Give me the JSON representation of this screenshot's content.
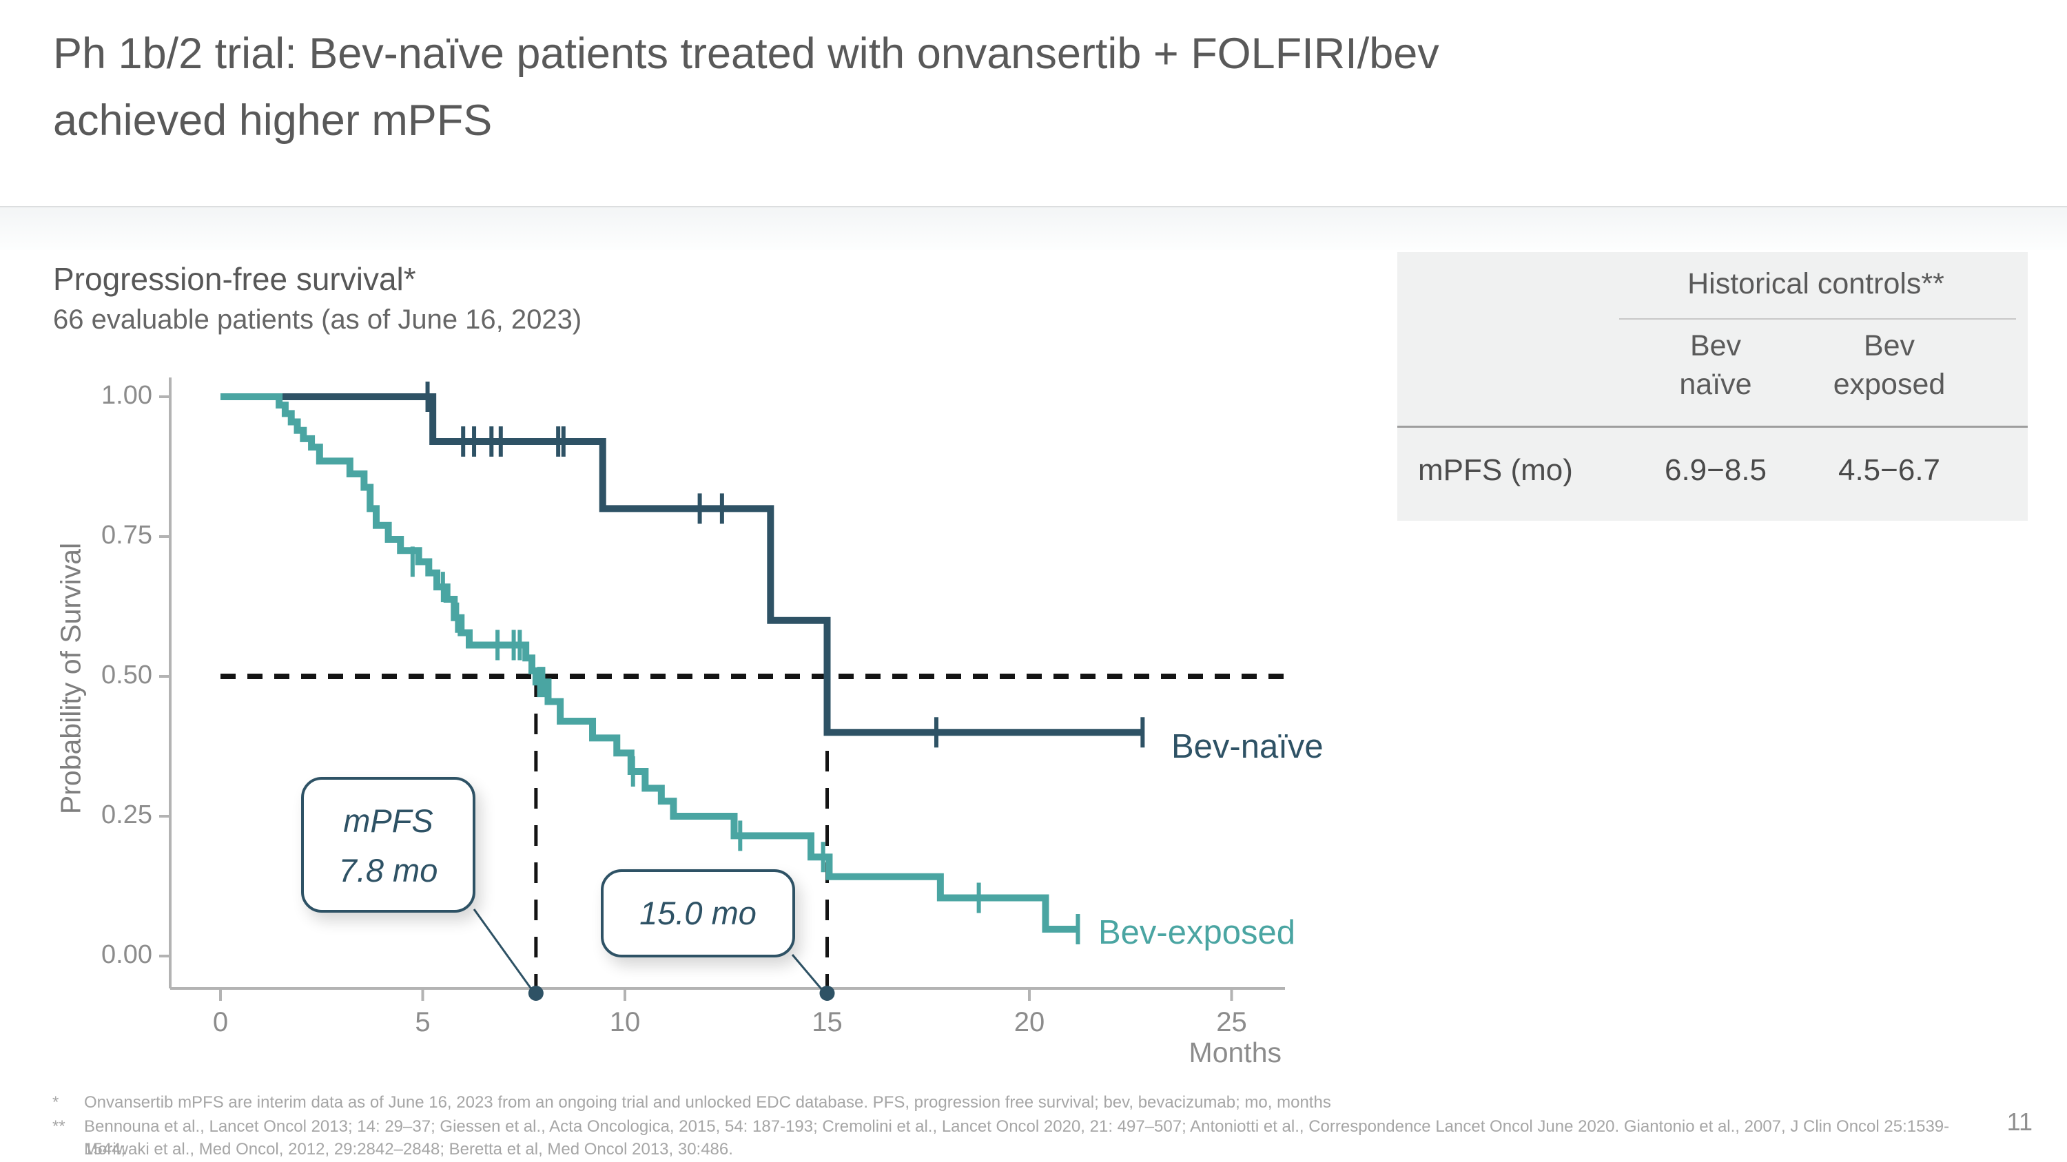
{
  "slide": {
    "title_line1": "Ph 1b/2 trial: Bev-naïve patients treated with onvansertib + FOLFIRI/bev",
    "title_line2": "achieved higher mPFS",
    "page_number": "11"
  },
  "chart_header": {
    "title": "Progression-free survival*",
    "subtitle": "66 evaluable patients (as of June 16, 2023)"
  },
  "hist_table": {
    "header": "Historical controls**",
    "col1_line1": "Bev",
    "col1_line2": "naïve",
    "col2_line1": "Bev",
    "col2_line2": "exposed",
    "row_label": "mPFS (mo)",
    "val1": "6.9−8.5",
    "val2": "4.5−6.7"
  },
  "footnotes": {
    "marker1": "*",
    "line1": "Onvansertib mPFS are interim data as of June 16, 2023 from an ongoing trial and unlocked EDC database. PFS, progression free survival; bev, bevacizumab; mo, months",
    "marker2": "**",
    "line2": "Bennouna et al., Lancet Oncol 2013; 14: 29–37; Giessen et al., Acta Oncologica, 2015, 54: 187-193;  Cremolini et al., Lancet Oncol 2020, 21: 497–507; Antoniotti et al., Correspondence Lancet Oncol June 2020. Giantonio et al., 2007, J Clin Oncol 25:1539-1544;",
    "line3": "Moriwaki et al., Med Oncol, 2012, 29:2842–2848; Beretta et al, Med Oncol 2013, 30:486."
  },
  "chart_data": {
    "type": "line",
    "subtype": "kaplan-meier-step",
    "title": "Progression-free survival*",
    "subtitle": "66 evaluable patients (as of June 16, 2023)",
    "xlabel": "Months",
    "ylabel": "Probability of Survival",
    "xlim": [
      0,
      26.3
    ],
    "ylim": [
      0,
      1.05
    ],
    "x_ticks": [
      0,
      5,
      10,
      15,
      20,
      25
    ],
    "y_ticks": [
      1.0,
      0.75,
      0.5,
      0.25,
      0.0
    ],
    "y_tick_labels": [
      "1.00",
      "0.75",
      "0.50",
      "0.25",
      "0.00"
    ],
    "grid": false,
    "legend_position": "end-of-curve",
    "reference_lines": {
      "h_probability": 0.5,
      "v_months": [
        7.8,
        15.0
      ]
    },
    "medians_months": {
      "bev_naive": 15.0,
      "bev_exposed": 7.8
    },
    "axis_color": "#b3b3b3",
    "tick_label_color": "#8c8c8c",
    "dash_color": "#141414",
    "series": [
      {
        "name": "Bev-naïve",
        "color": "#2e5265",
        "start": [
          0,
          1.0
        ],
        "end_month": 22.8,
        "drops": [
          [
            5.25,
            0.92
          ],
          [
            9.45,
            0.8
          ],
          [
            13.6,
            0.6
          ],
          [
            15.0,
            0.4
          ]
        ],
        "censors": [
          [
            5.12,
            1.0
          ],
          [
            6.0,
            0.92
          ],
          [
            6.27,
            0.92
          ],
          [
            6.7,
            0.92
          ],
          [
            6.93,
            0.92
          ],
          [
            8.35,
            0.92
          ],
          [
            8.48,
            0.92
          ],
          [
            11.85,
            0.8
          ],
          [
            12.4,
            0.8
          ],
          [
            17.7,
            0.4
          ],
          [
            22.8,
            0.4
          ]
        ]
      },
      {
        "name": "Bev-exposed",
        "color": "#4aa5a2",
        "start": [
          0,
          1.0
        ],
        "end_month": 21.2,
        "drops": [
          [
            1.45,
            0.985
          ],
          [
            1.6,
            0.97
          ],
          [
            1.75,
            0.955
          ],
          [
            1.9,
            0.94
          ],
          [
            2.05,
            0.925
          ],
          [
            2.25,
            0.91
          ],
          [
            2.45,
            0.885
          ],
          [
            3.2,
            0.862
          ],
          [
            3.55,
            0.838
          ],
          [
            3.7,
            0.8
          ],
          [
            3.85,
            0.77
          ],
          [
            4.15,
            0.745
          ],
          [
            4.45,
            0.725
          ],
          [
            4.9,
            0.705
          ],
          [
            5.15,
            0.685
          ],
          [
            5.35,
            0.66
          ],
          [
            5.6,
            0.638
          ],
          [
            5.78,
            0.605
          ],
          [
            5.95,
            0.578
          ],
          [
            6.15,
            0.556
          ],
          [
            7.55,
            0.533
          ],
          [
            7.7,
            0.51
          ],
          [
            7.8,
            0.49
          ],
          [
            8.1,
            0.455
          ],
          [
            8.4,
            0.42
          ],
          [
            9.2,
            0.39
          ],
          [
            9.8,
            0.363
          ],
          [
            10.15,
            0.33
          ],
          [
            10.5,
            0.3
          ],
          [
            10.9,
            0.277
          ],
          [
            11.2,
            0.25
          ],
          [
            12.7,
            0.215
          ],
          [
            14.6,
            0.177
          ],
          [
            15.05,
            0.142
          ],
          [
            17.8,
            0.104
          ],
          [
            20.4,
            0.048
          ]
        ],
        "censors": [
          [
            4.75,
            0.705
          ],
          [
            5.5,
            0.66
          ],
          [
            5.85,
            0.605
          ],
          [
            6.85,
            0.556
          ],
          [
            7.25,
            0.556
          ],
          [
            7.4,
            0.556
          ],
          [
            7.88,
            0.49
          ],
          [
            7.98,
            0.49
          ],
          [
            10.2,
            0.33
          ],
          [
            12.85,
            0.215
          ],
          [
            14.9,
            0.177
          ],
          [
            18.75,
            0.104
          ],
          [
            21.2,
            0.048
          ]
        ]
      }
    ],
    "annotations": {
      "callout1_line1": "mPFS",
      "callout1_line2": "7.8 mo",
      "callout2": "15.0 mo"
    }
  }
}
